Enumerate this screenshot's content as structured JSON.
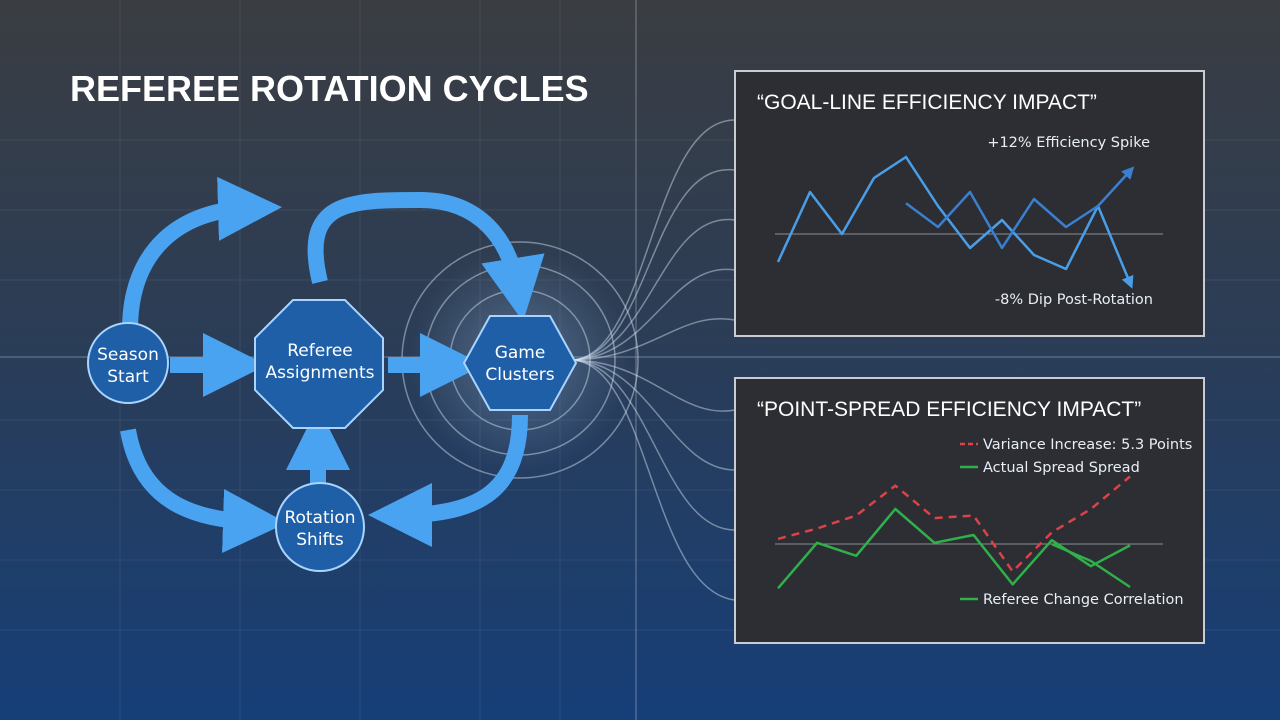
{
  "title": "REFEREE ROTATION CYCLES",
  "diagram": {
    "nodes": [
      {
        "lines": [
          "Season",
          "Start"
        ]
      },
      {
        "lines": [
          "Referee",
          "Assignments"
        ]
      },
      {
        "lines": [
          "Game",
          "Clusters"
        ]
      },
      {
        "lines": [
          "Rotation",
          "Shifts"
        ]
      }
    ]
  },
  "panels": [
    {
      "type": "line",
      "title": "“GOAL-LINE EFFICIENCY IMPACT”",
      "ylim": [
        0,
        10
      ],
      "annotations": [
        "+12% Efficiency Spike",
        "-8% Dip Post-Rotation"
      ],
      "series": [
        {
          "color": "#4a9ee8",
          "values": [
            2,
            7,
            4,
            8,
            9.5,
            6,
            3,
            5,
            2.5,
            1.5,
            6,
            0.5
          ]
        },
        {
          "color": "#3a7fd0",
          "values": [
            null,
            null,
            null,
            null,
            6.2,
            4.5,
            7,
            3,
            6.5,
            4.5,
            6,
            8.5
          ]
        }
      ]
    },
    {
      "type": "line",
      "title": "“POINT-SPREAD EFFICIENCY IMPACT”",
      "ylim": [
        0,
        10
      ],
      "series": [
        {
          "name": "Variance Increase: 5.3 Points",
          "color": "#d9434a",
          "dashed": true,
          "values": [
            4.7,
            5.5,
            6.5,
            8.8,
            6.3,
            6.5,
            2.2,
            5.2,
            7,
            9.5
          ]
        },
        {
          "name": "Actual Spread Spread",
          "color": "#2fb04a",
          "dashed": false,
          "values": [
            0.9,
            4.4,
            3.4,
            7,
            4.4,
            5,
            1.2,
            4.6,
            2.6,
            4.2
          ]
        },
        {
          "name": "Referee Change Correlation",
          "color": "#2fb04a",
          "dashed": false,
          "values": [
            null,
            null,
            null,
            null,
            null,
            null,
            null,
            4.3,
            3,
            1
          ]
        }
      ]
    }
  ]
}
